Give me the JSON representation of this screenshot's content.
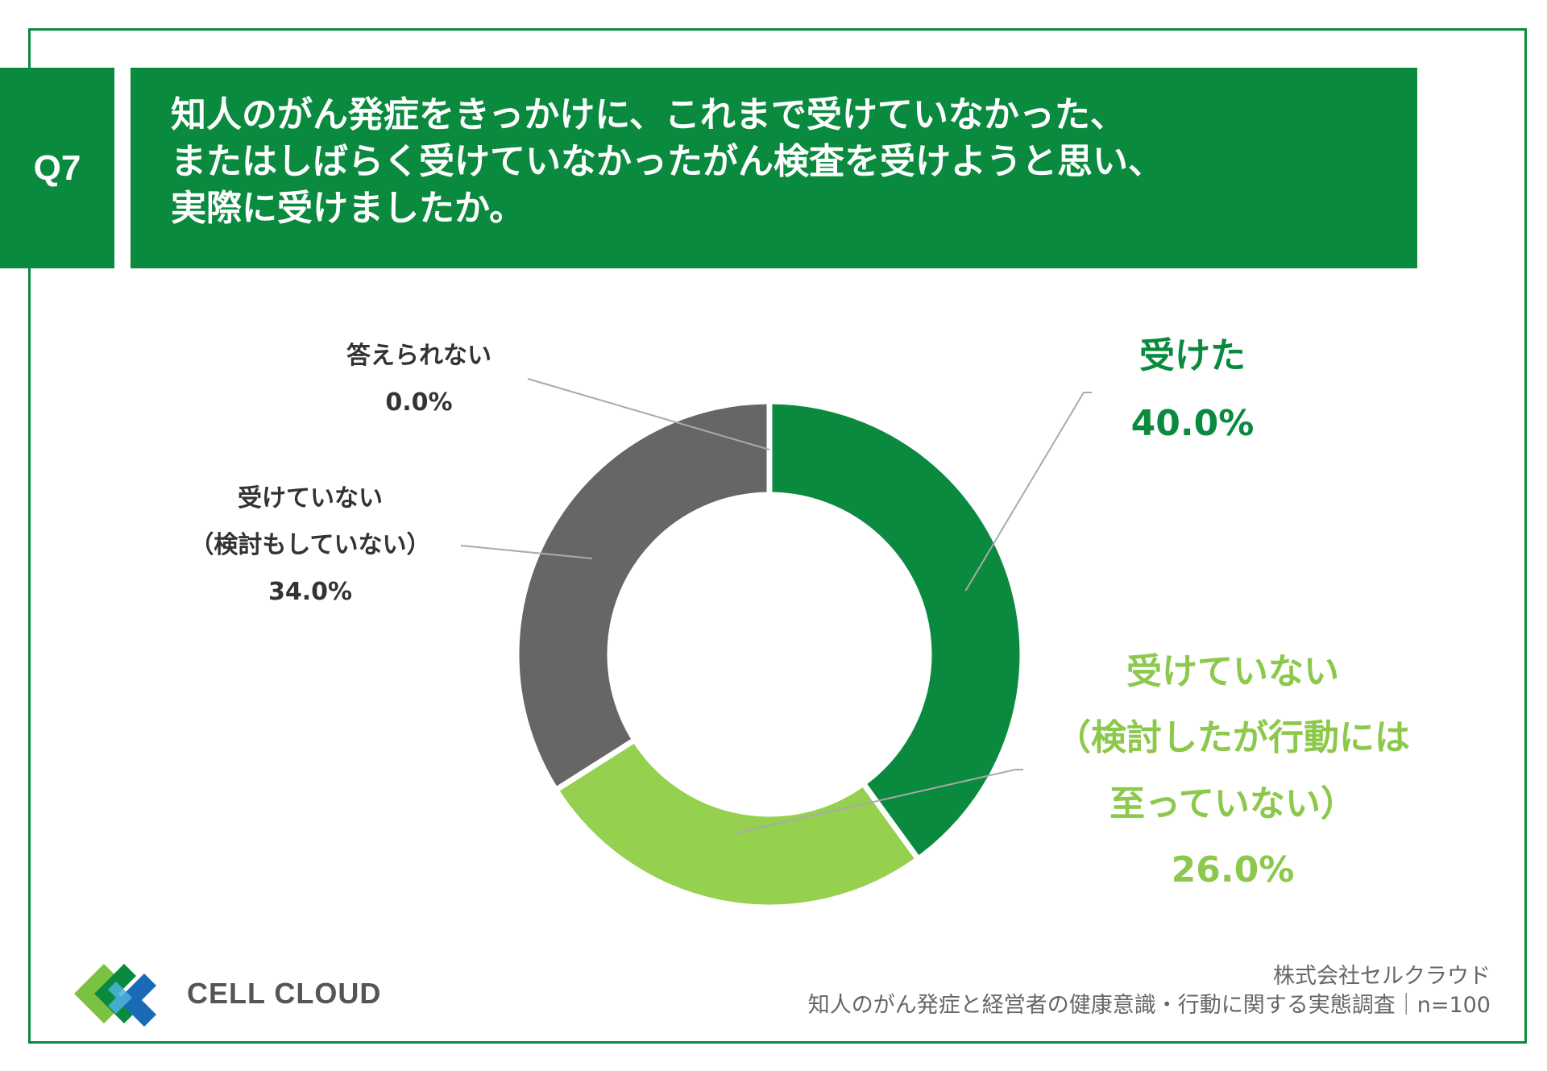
{
  "question": {
    "number": "Q7",
    "lines": [
      "知人のがん発症をきっかけに、これまで受けていなかった、",
      "またはしばらく受けていなかったがん検査を受けようと思い、",
      "実際に受けましたか。"
    ]
  },
  "chart_data": {
    "type": "pie",
    "donut": true,
    "title": "",
    "unit": "%",
    "slices": [
      {
        "label": "受けた",
        "value": 40.0,
        "display": "40.0%",
        "color": "#0a8a3e",
        "label_color": "#0a8a3e"
      },
      {
        "label": "受けていない（検討したが行動には至っていない）",
        "value": 26.0,
        "display": "26.0%",
        "color": "#95d04f",
        "label_color": "#8cc84b"
      },
      {
        "label": "受けていない（検討もしていない）",
        "value": 34.0,
        "display": "34.0%",
        "color": "#666666",
        "label_color": "#333333"
      },
      {
        "label": "答えられない",
        "value": 0.0,
        "display": "0.0%",
        "color": "#999999",
        "label_color": "#333333"
      }
    ],
    "labels_text": {
      "received": [
        "受けた",
        "40.0%"
      ],
      "considered": [
        "受けていない",
        "（検討したが行動には",
        "至っていない）",
        "26.0%"
      ],
      "not_considered": [
        "受けていない",
        "（検討もしていない）",
        "34.0%"
      ],
      "unanswered": [
        "答えられない",
        "0.0%"
      ]
    }
  },
  "footer": {
    "logo_text": "CELL CLOUD",
    "source_company": "株式会社セルクラウド",
    "source_survey": "知人のがん発症と経営者の健康意識・行動に関する実態調査｜n=100"
  },
  "colors": {
    "brand_green": "#0a8a3e",
    "light_green": "#95d04f",
    "gray": "#666666"
  }
}
